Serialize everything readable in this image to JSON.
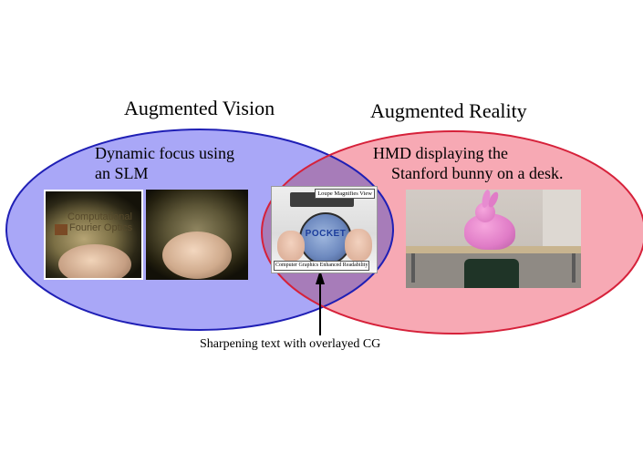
{
  "left_set": {
    "title": "Augmented Vision",
    "description_line1": "Dynamic focus using",
    "description_line2": "an SLM",
    "fill_color": "#a9a7f7",
    "stroke_color": "#1f1fb5",
    "photo1_overlay_text_line1": "Computational",
    "photo1_overlay_text_line2": "Fourier Optics"
  },
  "right_set": {
    "title": "Augmented Reality",
    "description_line1": "HMD displaying the",
    "description_line2": "Stanford bunny on a desk.",
    "fill_color": "#f7a9b4",
    "stroke_color": "#d6213a"
  },
  "intersection": {
    "fill_color": "#a77cb9",
    "photo_top_label": "Loupe Magnifies View",
    "photo_bottom_label": "Computer Graphics Enhanced Readability",
    "photo_overlay_text": "POCKET"
  },
  "caption": {
    "text": "Sharpening text with overlayed CG"
  }
}
